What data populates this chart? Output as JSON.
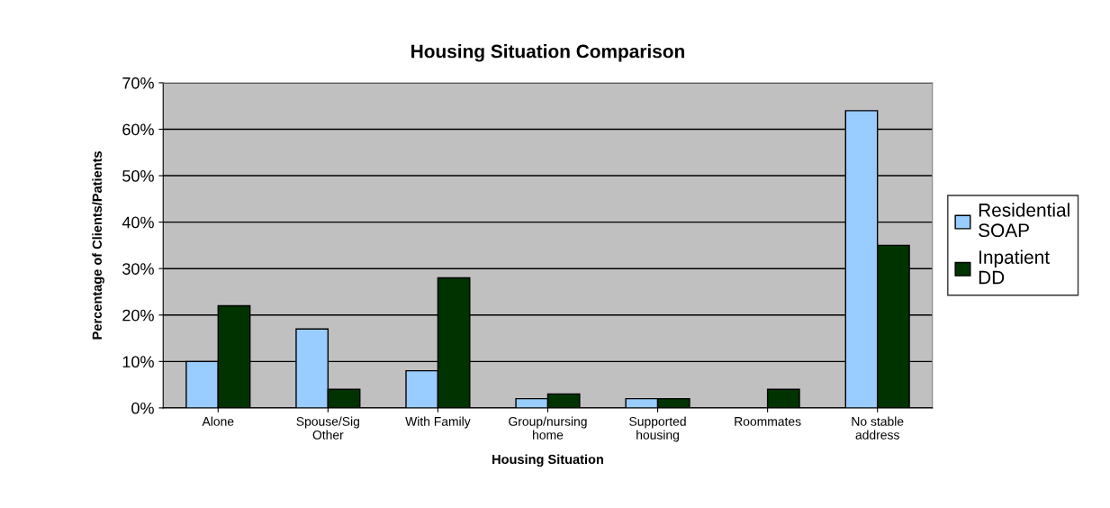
{
  "chart_data": {
    "type": "bar",
    "title": "Housing Situation Comparison",
    "xlabel": "Housing Situation",
    "ylabel": "Percentage of Clients/Patients",
    "categories": [
      "Alone",
      "Spouse/Sig\nOther",
      "With Family",
      "Group/nursing\nhome",
      "Supported\nhousing",
      "Roommates",
      "No stable\naddress"
    ],
    "series": [
      {
        "name": "Residential\nSOAP",
        "color": "#99ccff",
        "values": [
          10,
          17,
          8,
          2,
          2,
          null,
          64
        ]
      },
      {
        "name": "Inpatient\nDD",
        "color": "#003300",
        "values": [
          22,
          4,
          28,
          3,
          2,
          4,
          35
        ]
      }
    ],
    "ylim": [
      0,
      70
    ],
    "yticks": [
      {
        "value": 0,
        "label": "0%"
      },
      {
        "value": 10,
        "label": "10%"
      },
      {
        "value": 20,
        "label": "20%"
      },
      {
        "value": 30,
        "label": "30%"
      },
      {
        "value": 40,
        "label": "40%"
      },
      {
        "value": 50,
        "label": "50%"
      },
      {
        "value": 60,
        "label": "60%"
      },
      {
        "value": 70,
        "label": "70%"
      }
    ],
    "grid": "y",
    "legend": "right"
  }
}
